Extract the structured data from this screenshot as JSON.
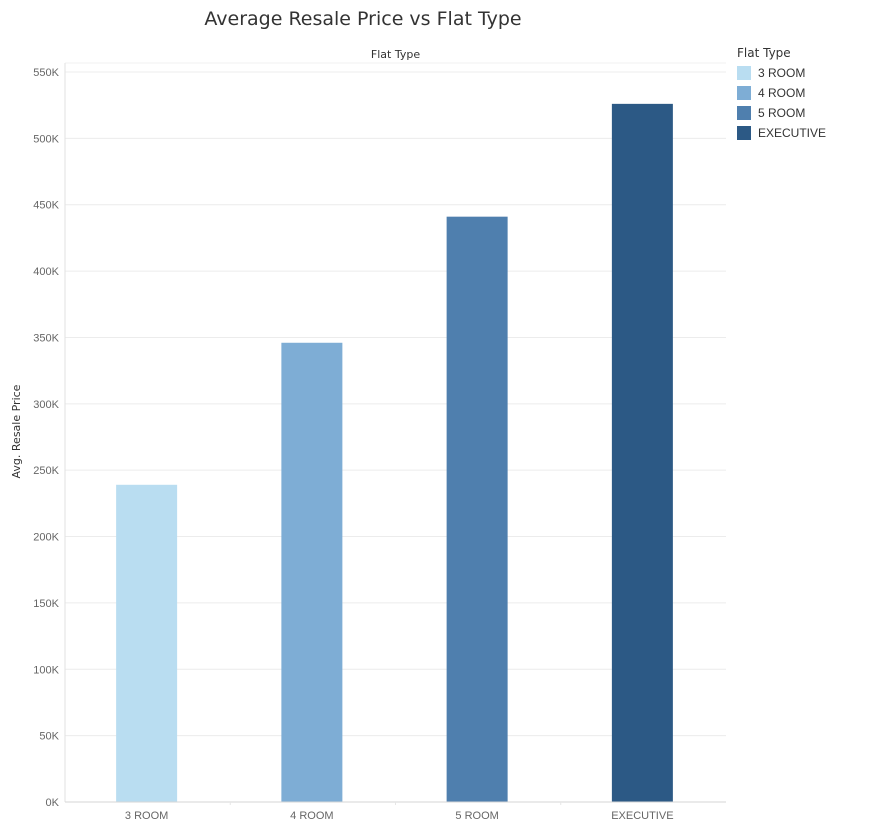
{
  "chart_data": {
    "type": "bar",
    "title": "Average Resale Price vs Flat Type",
    "top_header": "Flat Type",
    "xlabel": "",
    "ylabel": "Avg. Resale Price",
    "categories": [
      "3 ROOM",
      "4 ROOM",
      "5 ROOM",
      "EXECUTIVE"
    ],
    "values": [
      239000,
      346000,
      441000,
      526000
    ],
    "colors": [
      "#b9ddf1",
      "#7eadd5",
      "#4f7fae",
      "#2c5985"
    ],
    "ylim": [
      0,
      550000
    ],
    "yticks": [
      0,
      50000,
      100000,
      150000,
      200000,
      250000,
      300000,
      350000,
      400000,
      450000,
      500000,
      550000
    ],
    "ytick_labels": [
      "0K",
      "50K",
      "100K",
      "150K",
      "200K",
      "250K",
      "300K",
      "350K",
      "400K",
      "450K",
      "500K",
      "550K"
    ],
    "grid": true,
    "legend": {
      "title": "Flat Type",
      "placement": "right",
      "items": [
        "3 ROOM",
        "4 ROOM",
        "5 ROOM",
        "EXECUTIVE"
      ]
    }
  }
}
